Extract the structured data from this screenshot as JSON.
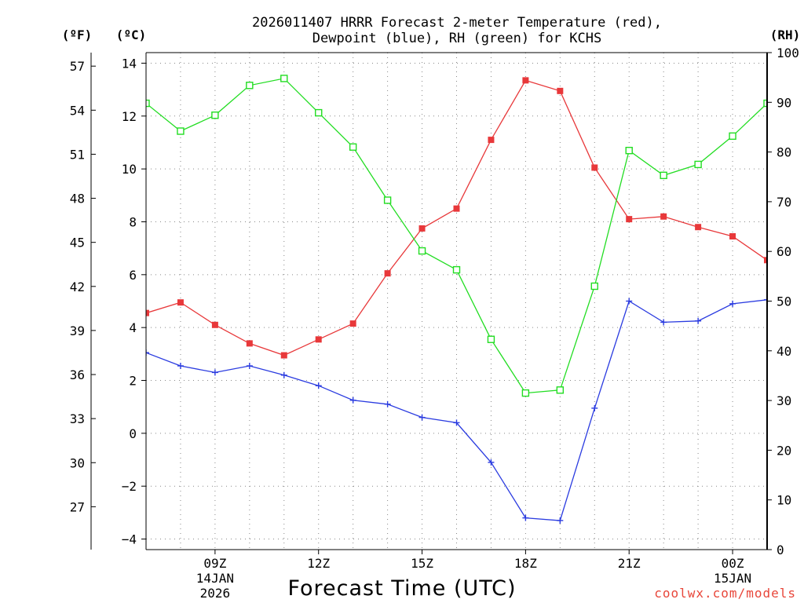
{
  "chart_data": {
    "type": "line",
    "title_lines": [
      "2026011407 HRRR Forecast 2-meter Temperature (red),",
      "Dewpoint (blue), RH (green) for KCHS"
    ],
    "xlabel": "Forecast Time (UTC)",
    "credit": "coolwx.com/models",
    "units": {
      "fahrenheit": "(ºF)",
      "celsius": "(ºC)",
      "rh": "(RH)"
    },
    "x_hours": [
      7,
      8,
      9,
      10,
      11,
      12,
      13,
      14,
      15,
      16,
      17,
      18,
      19,
      20,
      21,
      22,
      23,
      24,
      25
    ],
    "xlim": [
      7,
      25
    ],
    "x_ticks": [
      {
        "hour": 9,
        "label": "09Z",
        "date": "14JAN",
        "year": "2026"
      },
      {
        "hour": 12,
        "label": "12Z"
      },
      {
        "hour": 15,
        "label": "15Z"
      },
      {
        "hour": 18,
        "label": "18Z"
      },
      {
        "hour": 21,
        "label": "21Z"
      },
      {
        "hour": 24,
        "label": "00Z",
        "date": "15JAN"
      }
    ],
    "celsius_axis": {
      "ylim": [
        -4.4,
        14.4
      ],
      "ticks": [
        -4,
        -2,
        0,
        2,
        4,
        6,
        8,
        10,
        12,
        14
      ],
      "tick_labels": [
        "−4",
        "−2",
        "0",
        "2",
        "4",
        "6",
        "8",
        "10",
        "12",
        "14"
      ]
    },
    "fahrenheit_axis": {
      "ticks": [
        27,
        30,
        33,
        36,
        39,
        42,
        45,
        48,
        51,
        54,
        57
      ],
      "tick_labels": [
        "27",
        "30",
        "33",
        "36",
        "39",
        "42",
        "45",
        "48",
        "51",
        "54",
        "57"
      ]
    },
    "rh_axis": {
      "ylim": [
        0,
        100
      ],
      "ticks": [
        0,
        10,
        20,
        30,
        40,
        50,
        60,
        70,
        80,
        90,
        100
      ],
      "tick_labels": [
        "0",
        "10",
        "20",
        "30",
        "40",
        "50",
        "60",
        "70",
        "80",
        "90",
        "100"
      ]
    },
    "series": [
      {
        "name": "Temperature",
        "unit": "C",
        "color": "#e8383a",
        "marker": "filled-square",
        "values": [
          4.55,
          4.95,
          4.1,
          3.4,
          2.95,
          3.55,
          4.15,
          6.05,
          7.75,
          8.5,
          11.1,
          13.35,
          12.95,
          10.05,
          8.1,
          8.2,
          7.8,
          7.45,
          6.55
        ]
      },
      {
        "name": "Dewpoint",
        "unit": "C",
        "color": "#2a3be0",
        "marker": "plus",
        "values": [
          3.05,
          2.55,
          2.3,
          2.55,
          2.2,
          1.8,
          1.25,
          1.1,
          0.6,
          0.4,
          -1.1,
          -3.2,
          -3.3,
          0.95,
          5.0,
          4.2,
          4.25,
          4.9,
          5.05
        ]
      },
      {
        "name": "RH",
        "unit": "%",
        "color": "#22dd22",
        "marker": "open-square",
        "values": [
          89.8,
          84.2,
          87.4,
          93.4,
          94.8,
          87.9,
          81.0,
          70.3,
          60.1,
          56.3,
          42.3,
          31.5,
          32.1,
          53.0,
          80.3,
          75.3,
          77.5,
          83.2,
          89.8
        ]
      }
    ]
  }
}
